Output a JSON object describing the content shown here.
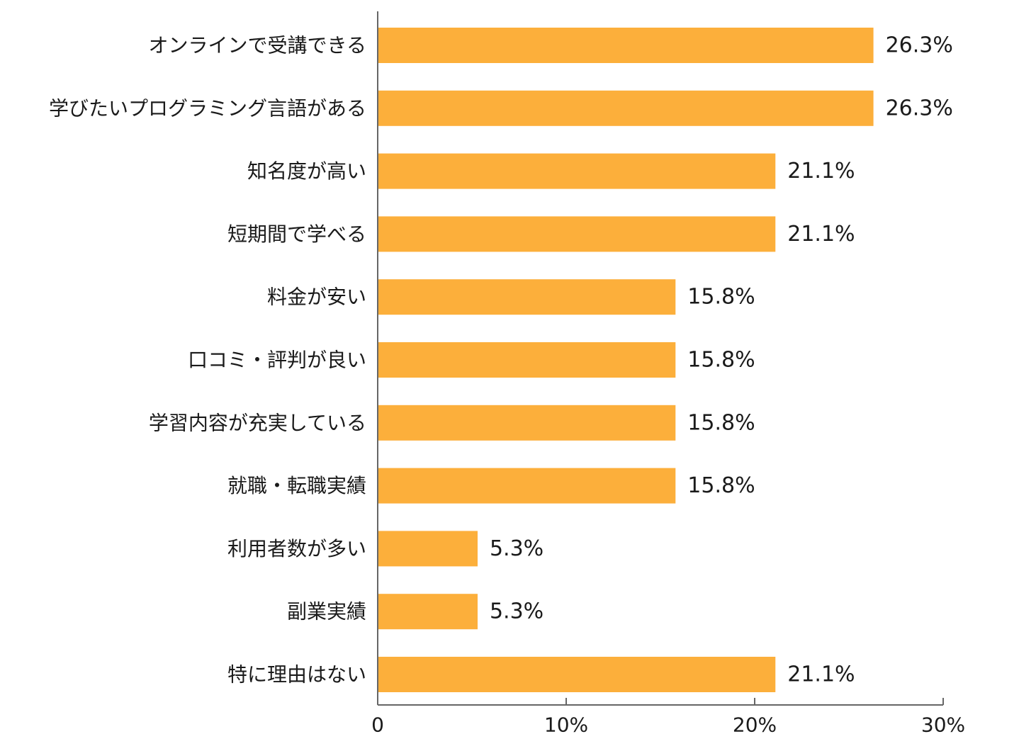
{
  "chart_data": {
    "type": "bar",
    "orientation": "horizontal",
    "categories": [
      "オンラインで受講できる",
      "学びたいプログラミング言語がある",
      "知名度が高い",
      "短期間で学べる",
      "料金が安い",
      "口コミ・評判が良い",
      "学習内容が充実している",
      "就職・転職実績",
      "利用者数が多い",
      "副業実績",
      "特に理由はない"
    ],
    "values": [
      26.3,
      26.3,
      21.1,
      21.1,
      15.8,
      15.8,
      15.8,
      15.8,
      5.3,
      5.3,
      21.1
    ],
    "value_labels": [
      "26.3%",
      "26.3%",
      "21.1%",
      "21.1%",
      "15.8%",
      "15.8%",
      "15.8%",
      "15.8%",
      "5.3%",
      "5.3%",
      "21.1%"
    ],
    "xlim": [
      0,
      30
    ],
    "x_ticks": [
      0,
      10,
      20,
      30
    ],
    "x_tick_labels": [
      "0",
      "10%",
      "20%",
      "30%"
    ],
    "title": "",
    "xlabel": "",
    "ylabel": "",
    "grid": false,
    "legend": "none",
    "colors": {
      "bar": "#FCAF3B",
      "axis": "#666666",
      "text": "#1a1a1a"
    }
  }
}
